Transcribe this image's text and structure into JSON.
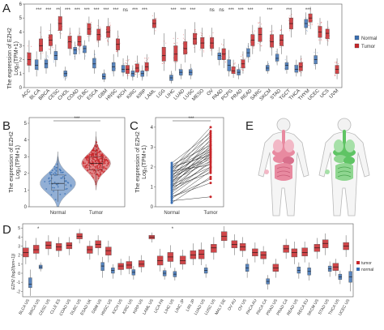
{
  "colors": {
    "normal": "#3a6fb3",
    "tumor": "#c8262a",
    "organ_pink": "#e88aa0",
    "organ_green": "#5fc464",
    "body_outline": "#b9b9b9"
  },
  "panel_a": {
    "letter": "A",
    "ylabel_line1": "The expression of EZH2",
    "ylabel_line2": "Log₂(TPM+1)",
    "y_ticks": [
      "0",
      "1",
      "2",
      "3",
      "4",
      "5",
      "6"
    ],
    "ylim": [
      0,
      6
    ],
    "legend_normal": "Normal",
    "legend_tumor": "Tumor",
    "categories": [
      "ACC",
      "BLCA",
      "BRCA",
      "CESC",
      "CHOL",
      "COAD",
      "DLBC",
      "ESCA",
      "GBM",
      "HNSC",
      "KICH",
      "KIRC",
      "KIRP",
      "LAML",
      "LGG",
      "LIHC",
      "LUAD",
      "LUSC",
      "MESO",
      "OV",
      "PAAD",
      "PCPG",
      "PRAD",
      "READ",
      "SARC",
      "SKCM",
      "STAD",
      "TGCT",
      "THCA",
      "THYM",
      "UCEC",
      "UCS",
      "UVM"
    ],
    "sig": [
      "",
      "***",
      "***",
      "**",
      "***",
      "***",
      "***",
      "***",
      "***",
      "***",
      "ns",
      "***",
      "***",
      "",
      "",
      "***",
      "***",
      "***",
      "",
      "ns",
      "ns",
      "***",
      "***",
      "***",
      "",
      "***",
      "",
      "***",
      "",
      "***",
      "",
      "",
      ""
    ],
    "boxes": [
      {
        "t": [
          1.1,
          1.6,
          2.0,
          2.5,
          3.4
        ],
        "n": null
      },
      {
        "t": [
          2.0,
          2.6,
          3.0,
          3.5,
          4.4
        ],
        "n": [
          0.8,
          1.3,
          1.6,
          2.0,
          2.6
        ]
      },
      {
        "t": [
          2.4,
          3.0,
          3.4,
          3.8,
          4.6
        ],
        "n": [
          1.0,
          1.4,
          1.7,
          2.0,
          2.6
        ]
      },
      {
        "t": [
          3.5,
          4.1,
          4.6,
          5.1,
          5.8
        ],
        "n": [
          1.5,
          2.0,
          2.3,
          2.6,
          3.1
        ]
      },
      {
        "t": [
          2.3,
          2.8,
          3.3,
          3.7,
          4.3
        ],
        "n": [
          0.5,
          0.8,
          1.0,
          1.2,
          1.5
        ]
      },
      {
        "t": [
          2.4,
          3.0,
          3.3,
          3.7,
          4.3
        ],
        "n": [
          2.0,
          2.4,
          2.7,
          2.9,
          3.3
        ]
      },
      {
        "t": [
          3.3,
          3.8,
          4.2,
          4.6,
          5.1
        ],
        "n": [
          2.0,
          2.5,
          2.8,
          3.0,
          3.4
        ]
      },
      {
        "t": [
          2.9,
          3.4,
          3.8,
          4.2,
          4.9
        ],
        "n": [
          1.0,
          1.4,
          1.7,
          2.1,
          2.7
        ]
      },
      {
        "t": [
          3.0,
          3.6,
          4.0,
          4.4,
          5.0
        ],
        "n": [
          0.4,
          0.6,
          0.8,
          1.0,
          1.3
        ]
      },
      {
        "t": [
          2.2,
          2.7,
          3.1,
          3.5,
          4.1
        ],
        "n": [
          0.8,
          1.2,
          1.5,
          1.8,
          2.4
        ]
      },
      {
        "t": [
          0.6,
          1.0,
          1.3,
          1.6,
          2.3
        ],
        "n": [
          0.8,
          1.1,
          1.3,
          1.6,
          2.1
        ]
      },
      {
        "t": [
          0.7,
          1.1,
          1.4,
          1.7,
          2.3
        ],
        "n": [
          0.5,
          0.8,
          1.0,
          1.2,
          1.6
        ]
      },
      {
        "t": [
          0.8,
          1.2,
          1.5,
          1.8,
          2.4
        ],
        "n": [
          0.5,
          0.8,
          1.0,
          1.2,
          1.6
        ]
      },
      {
        "t": [
          3.8,
          4.3,
          4.6,
          4.9,
          5.4
        ],
        "n": null
      },
      {
        "t": [
          1.2,
          1.9,
          2.3,
          2.9,
          3.9
        ],
        "n": null
      },
      {
        "t": [
          1.2,
          1.9,
          2.4,
          3.0,
          4.0
        ],
        "n": [
          0.3,
          0.5,
          0.7,
          0.9,
          1.2
        ]
      },
      {
        "t": [
          1.8,
          2.4,
          2.8,
          3.3,
          4.2
        ],
        "n": [
          0.6,
          0.9,
          1.1,
          1.3,
          1.7
        ]
      },
      {
        "t": [
          2.5,
          3.1,
          3.5,
          3.9,
          4.7
        ],
        "n": [
          0.6,
          0.9,
          1.1,
          1.3,
          1.7
        ]
      },
      {
        "t": [
          2.2,
          2.8,
          3.2,
          3.6,
          4.3
        ],
        "n": null
      },
      {
        "t": [
          2.3,
          2.8,
          3.2,
          3.6,
          4.3
        ],
        "n": null
      },
      {
        "t": [
          1.4,
          2.0,
          2.4,
          2.8,
          3.5
        ],
        "n": [
          1.6,
          2.0,
          2.3,
          2.5,
          2.9
        ]
      },
      {
        "t": [
          0.7,
          1.0,
          1.2,
          1.5,
          2.0
        ],
        "n": [
          0.8,
          1.2,
          1.6,
          2.0,
          2.7
        ]
      },
      {
        "t": [
          1.0,
          1.4,
          1.7,
          2.0,
          2.6
        ],
        "n": [
          0.6,
          0.9,
          1.1,
          1.3,
          1.7
        ]
      },
      {
        "t": [
          2.4,
          3.0,
          3.4,
          3.8,
          4.5
        ],
        "n": [
          1.8,
          2.2,
          2.5,
          2.8,
          3.2
        ]
      },
      {
        "t": [
          2.6,
          3.3,
          3.8,
          4.3,
          5.1
        ],
        "n": null
      },
      {
        "t": [
          2.3,
          2.9,
          3.3,
          3.8,
          4.5
        ],
        "n": [
          1.0,
          1.2,
          1.4,
          1.6,
          1.9
        ]
      },
      {
        "t": [
          2.4,
          3.0,
          3.4,
          3.8,
          4.5
        ],
        "n": [
          1.6,
          1.9,
          2.1,
          2.4,
          2.8
        ]
      },
      {
        "t": [
          3.6,
          4.2,
          4.6,
          5.0,
          5.6
        ],
        "n": [
          1.0,
          1.3,
          1.6,
          1.8,
          2.3
        ]
      },
      {
        "t": [
          0.8,
          1.2,
          1.5,
          1.8,
          2.3
        ],
        "n": [
          0.8,
          1.1,
          1.3,
          1.6,
          2.0
        ]
      },
      {
        "t": [
          4.2,
          4.7,
          5.0,
          5.3,
          5.8
        ],
        "n": [
          3.8,
          4.3,
          4.6,
          4.9,
          5.4
        ]
      },
      {
        "t": [
          3.1,
          3.6,
          4.0,
          4.4,
          5.0
        ],
        "n": [
          1.3,
          1.7,
          2.0,
          2.3,
          2.8
        ]
      },
      {
        "t": [
          3.0,
          3.5,
          3.9,
          4.2,
          4.8
        ],
        "n": null
      },
      {
        "t": [
          0.6,
          1.0,
          1.3,
          1.6,
          2.1
        ],
        "n": null
      }
    ]
  },
  "panel_b": {
    "letter": "B",
    "ylabel_line1": "The expression of EZH2",
    "ylabel_line2": "Log₂(TPM+1)",
    "y_ticks": [
      "0",
      "1",
      "2",
      "3",
      "4",
      "5"
    ],
    "ylim": [
      0,
      5
    ],
    "categories": [
      "Normal",
      "Tumor"
    ],
    "sig": "***",
    "boxes": [
      [
        0.3,
        1.0,
        1.4,
        1.9,
        3.0
      ],
      [
        1.3,
        2.2,
        2.6,
        3.0,
        4.2
      ]
    ]
  },
  "panel_c": {
    "letter": "C",
    "ylabel_line1": "The expression of EZH2",
    "ylabel_line2": "Log₂(TPM+1)",
    "y_ticks": [
      "0",
      "1",
      "2",
      "3",
      "4"
    ],
    "ylim": [
      0,
      4.2
    ],
    "categories": [
      "Normal",
      "Tumor"
    ],
    "sig": "***",
    "pairs": [
      [
        0.2,
        1.5
      ],
      [
        0.4,
        1.8
      ],
      [
        0.5,
        1.4
      ],
      [
        0.6,
        2.0
      ],
      [
        0.7,
        2.3
      ],
      [
        0.8,
        1.9
      ],
      [
        0.8,
        2.7
      ],
      [
        0.9,
        2.2
      ],
      [
        1.0,
        2.5
      ],
      [
        1.0,
        3.1
      ],
      [
        1.1,
        2.8
      ],
      [
        1.1,
        2.0
      ],
      [
        1.2,
        3.4
      ],
      [
        1.2,
        2.6
      ],
      [
        1.3,
        2.9
      ],
      [
        1.3,
        2.3
      ],
      [
        1.4,
        3.2
      ],
      [
        1.4,
        2.7
      ],
      [
        1.5,
        3.6
      ],
      [
        1.5,
        2.4
      ],
      [
        1.6,
        3.0
      ],
      [
        1.6,
        2.5
      ],
      [
        1.7,
        3.8
      ],
      [
        1.7,
        2.8
      ],
      [
        1.8,
        3.3
      ],
      [
        1.8,
        2.1
      ],
      [
        1.9,
        4.0
      ],
      [
        1.9,
        2.9
      ],
      [
        2.0,
        3.5
      ],
      [
        2.0,
        2.6
      ],
      [
        2.1,
        3.1
      ],
      [
        2.2,
        3.7
      ],
      [
        0.3,
        0.5
      ],
      [
        0.5,
        1.2
      ],
      [
        1.0,
        1.7
      ]
    ]
  },
  "panel_d": {
    "letter": "D",
    "ylabel": "EZH2 (log2(tpm+1))",
    "y_ticks": [
      "-2",
      "-1",
      "0",
      "1",
      "2",
      "3",
      "4",
      "5"
    ],
    "ylim": [
      -2.6,
      5.2
    ],
    "legend_tumor": "tumor",
    "legend_normal": "normal",
    "categories": [
      "BLCA US",
      "BRCA US",
      "CESC US",
      "CLLE ES",
      "COAD US",
      "DLBC US",
      "ESAD UK",
      "GBM US",
      "HNSC US",
      "KICH US",
      "KIRC US",
      "KIRP US",
      "LAML US",
      "LICA FR",
      "LIHC US",
      "LINC JP",
      "LIRI JP",
      "LUAD US",
      "LUSC US",
      "MALY DE",
      "OV AU",
      "OV US",
      "PACA AU",
      "PACA CA",
      "PRAD US",
      "PRAD CA",
      "READ US",
      "RECA EU",
      "SKCM US",
      "STAD US",
      "THCA US",
      "UCEC US"
    ],
    "sig": [
      "",
      "*",
      "",
      "",
      "",
      "",
      "",
      "",
      "",
      "",
      "",
      "",
      "",
      "",
      "*",
      "",
      "",
      "",
      "",
      "",
      "",
      "",
      "",
      "",
      "",
      "",
      "",
      "",
      "",
      "",
      "",
      ""
    ],
    "boxes": [
      {
        "t": [
          1.0,
          1.8,
          2.3,
          2.8,
          3.6
        ],
        "n": [
          -2.5,
          -1.6,
          -1.2,
          -0.5,
          0.4
        ]
      },
      {
        "t": [
          1.5,
          2.2,
          2.6,
          3.1,
          3.9
        ],
        "n": [
          0.2,
          0.5,
          0.7,
          0.9,
          1.2
        ]
      },
      {
        "t": [
          2.0,
          2.7,
          3.1,
          3.5,
          4.2
        ],
        "n": null
      },
      {
        "t": [
          1.8,
          2.5,
          2.9,
          3.3,
          4.0
        ],
        "n": null
      },
      {
        "t": [
          2.0,
          2.7,
          3.1,
          3.4,
          4.0
        ],
        "n": null
      },
      {
        "t": [
          3.3,
          3.8,
          4.1,
          4.4,
          4.9
        ],
        "n": null
      },
      {
        "t": [
          1.5,
          2.2,
          2.6,
          3.0,
          3.6
        ],
        "n": null
      },
      {
        "t": [
          2.0,
          2.8,
          3.2,
          3.6,
          4.2
        ],
        "n": [
          -0.5,
          0.3,
          0.8,
          1.2,
          1.8
        ]
      },
      {
        "t": [
          1.2,
          2.0,
          2.5,
          2.9,
          3.6
        ],
        "n": [
          -0.6,
          0.0,
          0.3,
          0.6,
          1.0
        ]
      },
      {
        "t": [
          -0.2,
          0.4,
          0.8,
          1.1,
          1.6
        ],
        "n": null
      },
      {
        "t": [
          -0.1,
          0.5,
          0.9,
          1.3,
          1.9
        ],
        "n": [
          -0.7,
          -0.2,
          0.1,
          0.4,
          0.8
        ]
      },
      {
        "t": [
          0.1,
          0.7,
          1.0,
          1.4,
          2.0
        ],
        "n": null
      },
      {
        "t": [
          3.4,
          3.8,
          4.0,
          4.2,
          4.5
        ],
        "n": null
      },
      {
        "t": [
          0.2,
          0.9,
          1.4,
          1.9,
          2.7
        ],
        "n": [
          -0.7,
          -0.3,
          0.0,
          0.3,
          0.6
        ]
      },
      {
        "t": [
          0.6,
          1.3,
          1.8,
          2.3,
          3.1
        ],
        "n": [
          -0.8,
          -0.4,
          -0.1,
          0.2,
          0.6
        ]
      },
      {
        "t": [
          0.4,
          1.0,
          1.4,
          1.9,
          2.6
        ],
        "n": null
      },
      {
        "t": [
          0.9,
          1.6,
          2.0,
          2.5,
          3.3
        ],
        "n": null
      },
      {
        "t": [
          0.9,
          1.6,
          2.1,
          2.6,
          3.4
        ],
        "n": [
          -0.5,
          0.0,
          0.3,
          0.6,
          1.0
        ]
      },
      {
        "t": [
          1.5,
          2.3,
          2.8,
          3.2,
          4.0
        ],
        "n": null
      },
      {
        "t": [
          2.8,
          3.6,
          4.1,
          4.6,
          5.2
        ],
        "n": null
      },
      {
        "t": [
          2.0,
          2.8,
          3.2,
          3.6,
          4.3
        ],
        "n": null
      },
      {
        "t": [
          1.8,
          2.5,
          2.9,
          3.3,
          4.0
        ],
        "n": [
          -0.5,
          0.2,
          0.6,
          1.0,
          1.6
        ]
      },
      {
        "t": [
          1.2,
          1.9,
          2.3,
          2.7,
          3.4
        ],
        "n": null
      },
      {
        "t": [
          1.0,
          1.6,
          2.0,
          2.4,
          3.0
        ],
        "n": [
          -1.8,
          -1.2,
          -0.9,
          -0.6,
          -0.2
        ]
      },
      {
        "t": [
          -0.5,
          0.2,
          0.6,
          1.0,
          1.6
        ],
        "n": null
      },
      {
        "t": [
          1.6,
          2.3,
          2.7,
          3.1,
          3.8
        ],
        "n": null
      },
      {
        "t": [
          1.0,
          1.8,
          2.3,
          2.7,
          3.5
        ],
        "n": [
          -0.6,
          0.0,
          0.3,
          0.7,
          1.2
        ]
      },
      {
        "t": [
          1.2,
          1.9,
          2.3,
          2.8,
          3.5
        ],
        "n": [
          -0.8,
          -0.2,
          0.2,
          0.6,
          1.2
        ]
      },
      {
        "t": [
          1.6,
          2.4,
          2.8,
          3.2,
          3.9
        ],
        "n": null
      },
      {
        "t": [
          2.0,
          2.8,
          3.3,
          3.7,
          4.4
        ],
        "n": [
          -0.4,
          0.2,
          0.5,
          0.8,
          1.3
        ]
      },
      {
        "t": [
          -0.3,
          0.3,
          0.7,
          1.1,
          1.6
        ],
        "n": [
          -1.2,
          -0.7,
          -0.4,
          -0.1,
          0.3
        ]
      },
      {
        "t": [
          1.8,
          2.6,
          3.0,
          3.4,
          4.2
        ],
        "n": [
          -2.0,
          -1.0,
          -0.4,
          0.2,
          1.0
        ]
      }
    ]
  },
  "chart_data": [
    {
      "type": "box",
      "panel": "A",
      "note": "see panel_a.boxes (whisker-low, q1, median, q3, whisker-high) for tumor (t) and normal (n)"
    },
    {
      "type": "violin",
      "panel": "B"
    },
    {
      "type": "line",
      "panel": "C"
    },
    {
      "type": "box",
      "panel": "D"
    }
  ],
  "panel_e": {
    "letter": "E"
  }
}
